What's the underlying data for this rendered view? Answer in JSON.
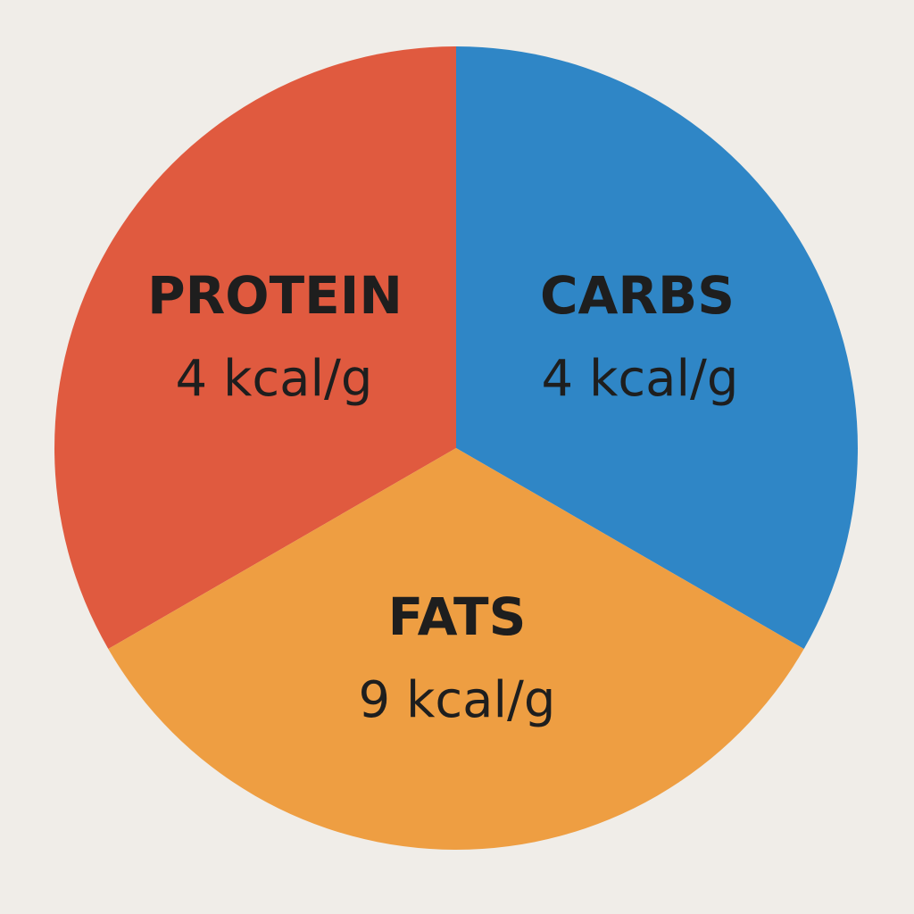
{
  "segments": [
    {
      "name": "PROTEIN",
      "energy": "4 kcal/g"
    },
    {
      "name": "CARBS",
      "energy": "4 kcal/g"
    },
    {
      "name": "FATS",
      "energy": "9 kcal/g"
    }
  ]
}
